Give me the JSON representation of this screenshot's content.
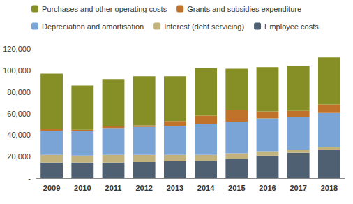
{
  "chart_data": {
    "type": "bar",
    "stacked": true,
    "grid": false,
    "legend": "top-left",
    "categories": [
      "2009",
      "2010",
      "2011",
      "2012",
      "2013",
      "2014",
      "2015",
      "2016",
      "2017",
      "2018"
    ],
    "ylim": [
      0,
      120000
    ],
    "yticks": [
      {
        "value": 0,
        "label": "-"
      },
      {
        "value": 20000,
        "label": "20,000"
      },
      {
        "value": 40000,
        "label": "40,000"
      },
      {
        "value": 60000,
        "label": "60,000"
      },
      {
        "value": 80000,
        "label": "80,000"
      },
      {
        "value": 100000,
        "label": "100,000"
      },
      {
        "value": 120000,
        "label": "120,000"
      }
    ],
    "series": [
      {
        "name": "Employee costs",
        "color": "#4f6072",
        "values": [
          14500,
          14500,
          14500,
          15000,
          15500,
          16000,
          18000,
          21000,
          23500,
          26000
        ]
      },
      {
        "name": "Interest (debt servicing)",
        "color": "#c2b27c",
        "values": [
          7000,
          6500,
          7000,
          6500,
          6000,
          5500,
          5000,
          4000,
          3000,
          2500
        ]
      },
      {
        "name": "Depreciation and amortisation",
        "color": "#7ba4d6",
        "values": [
          22500,
          23000,
          25000,
          26000,
          27000,
          28500,
          29500,
          30500,
          30000,
          32000
        ]
      },
      {
        "name": "Grants and subsidies expenditure",
        "color": "#c0722a",
        "values": [
          1500,
          1000,
          1500,
          1500,
          4500,
          8000,
          10500,
          6500,
          6000,
          8000
        ]
      },
      {
        "name": "Purchases and other operating costs",
        "color": "#868e26",
        "values": [
          51500,
          41000,
          44000,
          45500,
          41500,
          44000,
          38500,
          41000,
          42000,
          43500
        ]
      }
    ]
  }
}
